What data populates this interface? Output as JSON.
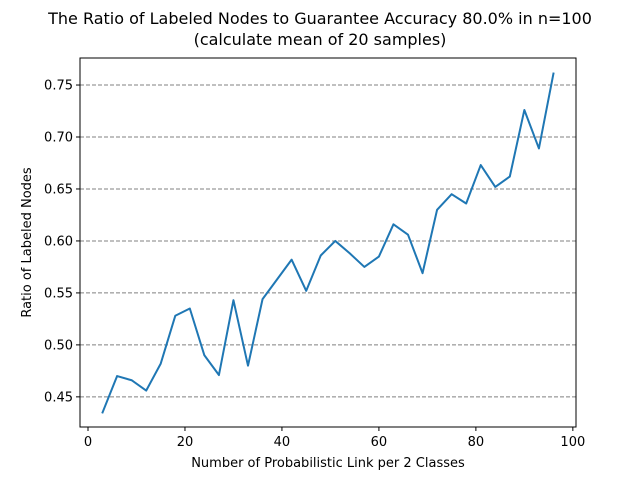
{
  "chart_data": {
    "type": "line",
    "title": "The Ratio of Labeled Nodes to Guarantee Accuracy 80.0% in n=100",
    "subtitle": "(calculate mean of 20 samples)",
    "xlabel": "Number of Probabilistic Link per 2 Classes",
    "ylabel": "Ratio of Labeled Nodes",
    "xlim": [
      -1.65,
      100.65
    ],
    "ylim": [
      0.421,
      0.776
    ],
    "xticks": [
      0,
      20,
      40,
      60,
      80,
      100
    ],
    "xtick_labels": [
      "0",
      "20",
      "40",
      "60",
      "80",
      "100"
    ],
    "yticks": [
      0.45,
      0.5,
      0.55,
      0.6,
      0.65,
      0.7,
      0.75
    ],
    "ytick_labels": [
      "0.45",
      "0.50",
      "0.55",
      "0.60",
      "0.65",
      "0.70",
      "0.75"
    ],
    "grid": "y-dashed",
    "line_color": "#1f77b4",
    "grid_color": "#808080",
    "series": [
      {
        "x": [
          3,
          6,
          9,
          12,
          15,
          18,
          21,
          24,
          27,
          30,
          33,
          36,
          39,
          42,
          45,
          48,
          51,
          54,
          57,
          60,
          63,
          66,
          69,
          72,
          75,
          78,
          81,
          84,
          87,
          90,
          93,
          96
        ],
        "values": [
          0.435,
          0.47,
          0.466,
          0.456,
          0.482,
          0.528,
          0.535,
          0.49,
          0.471,
          0.543,
          0.48,
          0.544,
          0.563,
          0.582,
          0.552,
          0.586,
          0.6,
          0.588,
          0.575,
          0.585,
          0.616,
          0.606,
          0.569,
          0.63,
          0.645,
          0.636,
          0.673,
          0.652,
          0.662,
          0.726,
          0.689,
          0.761
        ]
      }
    ]
  }
}
